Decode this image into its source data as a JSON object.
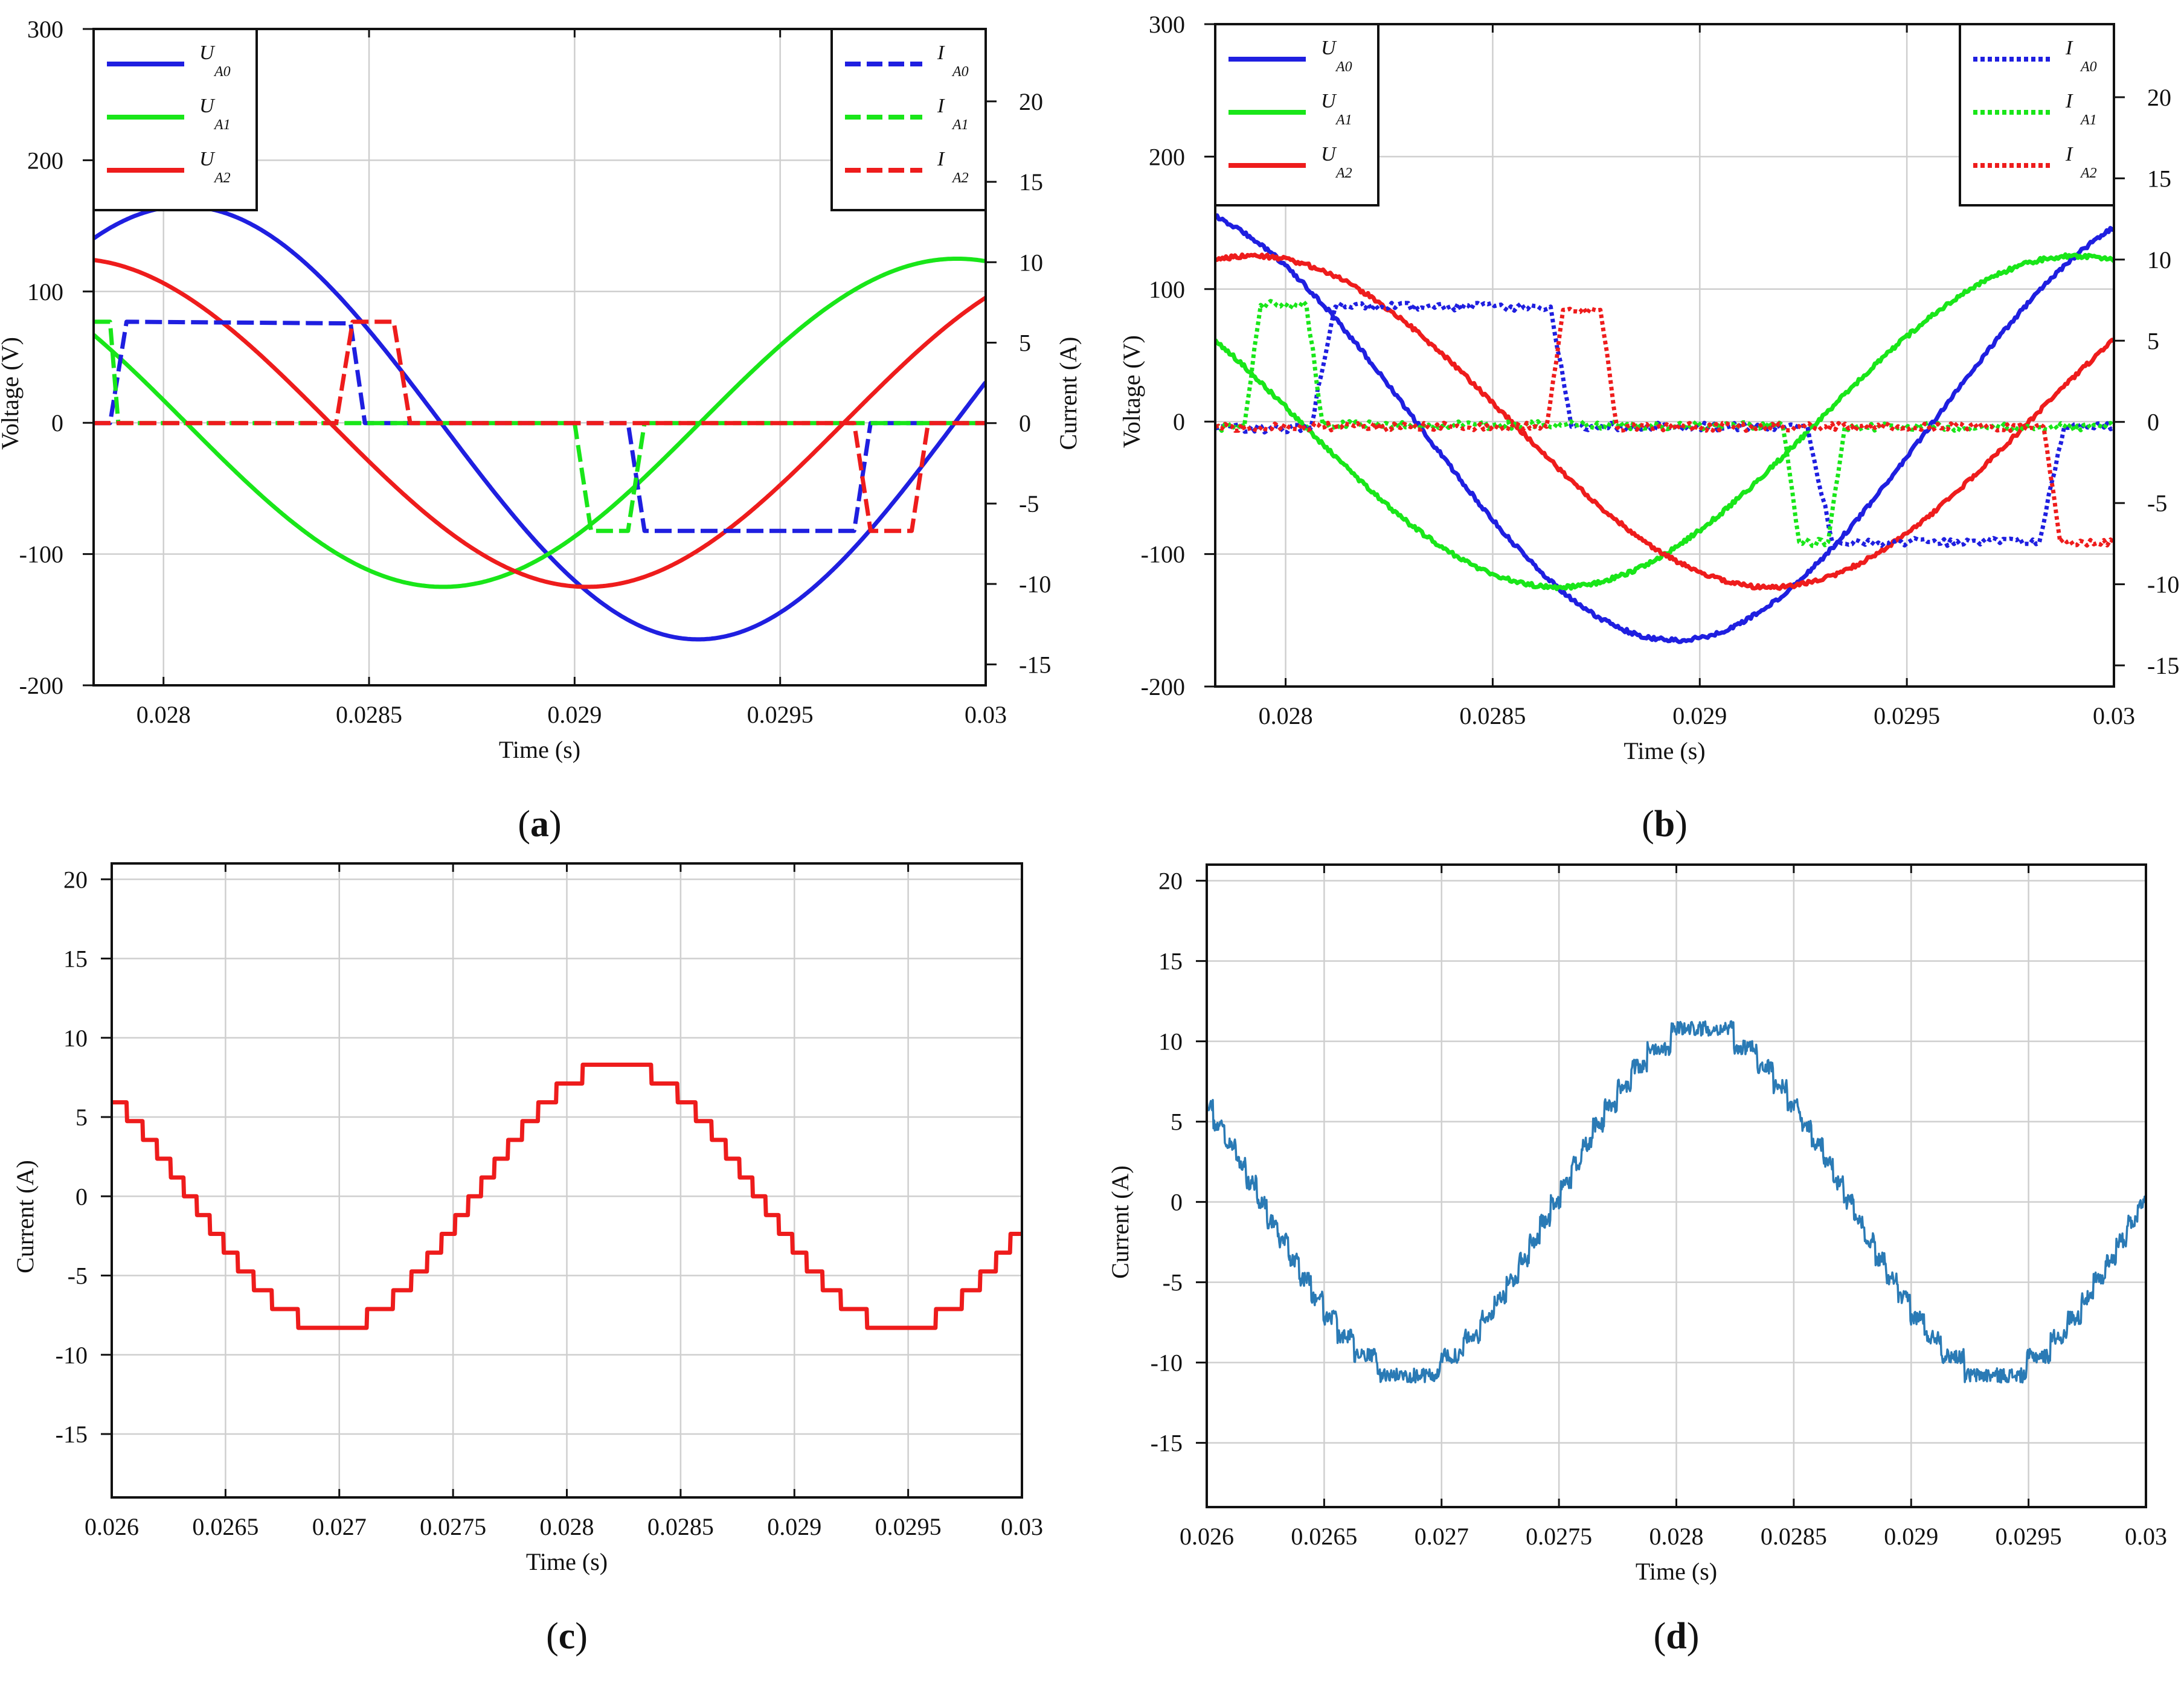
{
  "chart_data": [
    {
      "id": "a",
      "panel_label": "(a)",
      "panel_letter": "a",
      "type": "line",
      "xlabel": "Time (s)",
      "ylabel": "Voltage (V)",
      "y2label": "Current (A)",
      "xlim": [
        0.02783,
        0.03
      ],
      "ylim": [
        -200,
        300
      ],
      "y2lim": [
        -16.3,
        24.5
      ],
      "xticks": [
        0.028,
        0.0285,
        0.029,
        0.0295,
        0.03
      ],
      "xtick_labels": [
        "0.028",
        "0.0285",
        "0.029",
        "0.0295",
        "0.03"
      ],
      "yticks": [
        -200,
        -100,
        0,
        100,
        200,
        300
      ],
      "ytick_labels": [
        "-200",
        "-100",
        "0",
        "100",
        "200",
        "300"
      ],
      "y2ticks": [
        -15,
        -10,
        -5,
        0,
        5,
        10,
        15,
        20
      ],
      "y2tick_labels": [
        "-15",
        "-10",
        "-5",
        "0",
        "5",
        "10",
        "15",
        "20"
      ],
      "legend_left": [
        {
          "main": "U",
          "sub": "A0",
          "color": "#1f1fe0",
          "style": "solid"
        },
        {
          "main": "U",
          "sub": "A1",
          "color": "#19e619",
          "style": "solid"
        },
        {
          "main": "U",
          "sub": "A2",
          "color": "#ee1c1c",
          "style": "solid"
        }
      ],
      "legend_right": [
        {
          "main": "I",
          "sub": "A0",
          "color": "#1f1fe0",
          "style": "dashed"
        },
        {
          "main": "I",
          "sub": "A1",
          "color": "#19e619",
          "style": "dashed"
        },
        {
          "main": "I",
          "sub": "A2",
          "color": "#ee1c1c",
          "style": "dashed"
        }
      ],
      "series": [
        {
          "name": "U_A0",
          "axis": "left",
          "kind": "sine",
          "amp": 165,
          "period": 0.0025,
          "phase": 0.02805,
          "color": "#1f1fe0"
        },
        {
          "name": "U_A1",
          "axis": "left",
          "kind": "sine",
          "amp": 125,
          "period": 0.0025,
          "phase": 0.02743,
          "color": "#19e619"
        },
        {
          "name": "U_A2",
          "axis": "left",
          "kind": "sine",
          "amp": 125,
          "period": 0.0025,
          "phase": 0.02778,
          "color": "#ee1c1c"
        },
        {
          "name": "I_A0",
          "axis": "right",
          "kind": "steps",
          "color": "#1f1fe0",
          "dashed": true,
          "x": [
            0.02783,
            0.02787,
            0.02791,
            0.028455,
            0.02849,
            0.02913,
            0.02917,
            0.02968,
            0.02972,
            0.03
          ],
          "y": [
            0,
            0,
            6.3,
            6.2,
            0,
            0,
            -6.7,
            -6.7,
            0,
            0
          ]
        },
        {
          "name": "I_A1",
          "axis": "right",
          "kind": "steps",
          "color": "#19e619",
          "dashed": true,
          "x": [
            0.02783,
            0.02787,
            0.02789,
            0.029,
            0.02904,
            0.02913,
            0.02917,
            0.03
          ],
          "y": [
            6.3,
            6.3,
            0,
            0,
            -6.7,
            -6.7,
            0,
            0
          ]
        },
        {
          "name": "I_A2",
          "axis": "right",
          "kind": "steps",
          "color": "#ee1c1c",
          "dashed": true,
          "x": [
            0.02783,
            0.02842,
            0.02846,
            0.02856,
            0.0286,
            0.02968,
            0.02972,
            0.02982,
            0.02986,
            0.03
          ],
          "y": [
            0,
            0,
            6.3,
            6.3,
            0,
            0,
            -6.7,
            -6.7,
            0,
            0
          ]
        }
      ]
    },
    {
      "id": "b",
      "panel_label": "(b)",
      "panel_letter": "b",
      "type": "line",
      "xlabel": "Time (s)",
      "ylabel": "Voltage (V)",
      "y2label": "Current (A)",
      "xlim": [
        0.02783,
        0.03
      ],
      "ylim": [
        -200,
        300
      ],
      "y2lim": [
        -16.3,
        24.5
      ],
      "xticks": [
        0.028,
        0.0285,
        0.029,
        0.0295,
        0.03
      ],
      "xtick_labels": [
        "0.028",
        "0.0285",
        "0.029",
        "0.0295",
        "0.03"
      ],
      "yticks": [
        -200,
        -100,
        0,
        100,
        200,
        300
      ],
      "ytick_labels": [
        "-200",
        "-100",
        "0",
        "100",
        "200",
        "300"
      ],
      "y2ticks": [
        -15,
        -10,
        -5,
        0,
        5,
        10,
        15,
        20
      ],
      "y2tick_labels": [
        "-15",
        "-10",
        "-5",
        "0",
        "5",
        "10",
        "15",
        "20"
      ],
      "legend_left": [
        {
          "main": "U",
          "sub": "A0",
          "color": "#1f1fe0",
          "style": "solid"
        },
        {
          "main": "U",
          "sub": "A1",
          "color": "#19e619",
          "style": "solid"
        },
        {
          "main": "U",
          "sub": "A2",
          "color": "#ee1c1c",
          "style": "solid"
        }
      ],
      "legend_right": [
        {
          "main": "I",
          "sub": "A0",
          "color": "#1f1fe0",
          "style": "dotted"
        },
        {
          "main": "I",
          "sub": "A1",
          "color": "#19e619",
          "style": "dotted"
        },
        {
          "main": "I",
          "sub": "A2",
          "color": "#ee1c1c",
          "style": "dotted"
        }
      ],
      "series": [
        {
          "name": "U_A0",
          "axis": "left",
          "kind": "sine",
          "amp": 165,
          "period": 0.0025,
          "phase": 0.02769,
          "color": "#1f1fe0",
          "noise": 1.5
        },
        {
          "name": "U_A1",
          "axis": "left",
          "kind": "sine",
          "amp": 125,
          "period": 0.0025,
          "phase": 0.02741,
          "color": "#19e619",
          "noise": 1.5
        },
        {
          "name": "U_A2",
          "axis": "left",
          "kind": "sine",
          "amp": 125,
          "period": 0.0025,
          "phase": 0.02792,
          "color": "#ee1c1c",
          "noise": 1.5
        },
        {
          "name": "I_A0",
          "axis": "right",
          "kind": "steps",
          "color": "#1f1fe0",
          "dotted": true,
          "noise": 0.25,
          "x": [
            0.02783,
            0.02806,
            0.02812,
            0.02864,
            0.02869,
            0.02926,
            0.02932,
            0.02982,
            0.02988,
            0.03
          ],
          "y": [
            -0.4,
            -0.4,
            7.1,
            7.1,
            -0.3,
            -0.3,
            -7.4,
            -7.4,
            -0.3,
            -0.3
          ]
        },
        {
          "name": "I_A1",
          "axis": "right",
          "kind": "steps",
          "color": "#19e619",
          "dotted": true,
          "noise": 0.25,
          "x": [
            0.02783,
            0.0279,
            0.02794,
            0.02805,
            0.02809,
            0.0292,
            0.02924,
            0.02931,
            0.02935,
            0.03
          ],
          "y": [
            -0.3,
            -0.3,
            7.2,
            7.2,
            -0.2,
            -0.2,
            -7.4,
            -7.4,
            -0.3,
            -0.3
          ]
        },
        {
          "name": "I_A2",
          "axis": "right",
          "kind": "steps",
          "color": "#ee1c1c",
          "dotted": true,
          "noise": 0.25,
          "x": [
            0.02783,
            0.02863,
            0.02867,
            0.02876,
            0.0288,
            0.02983,
            0.02987,
            0.03
          ],
          "y": [
            -0.3,
            -0.3,
            6.9,
            6.9,
            -0.3,
            -0.3,
            -7.4,
            -7.4
          ]
        }
      ]
    },
    {
      "id": "c",
      "panel_label": "(c)",
      "panel_letter": "c",
      "type": "line",
      "xlabel": "Time (s)",
      "ylabel": "Current (A)",
      "xlim": [
        0.026,
        0.03
      ],
      "ylim": [
        -19,
        21
      ],
      "xticks": [
        0.026,
        0.0265,
        0.027,
        0.0275,
        0.028,
        0.0285,
        0.029,
        0.0295,
        0.03
      ],
      "xtick_labels": [
        "0.026",
        "0.0265",
        "0.027",
        "0.0275",
        "0.028",
        "0.0285",
        "0.029",
        "0.0295",
        "0.03"
      ],
      "yticks": [
        -15,
        -10,
        -5,
        0,
        5,
        10,
        15,
        20
      ],
      "ytick_labels": [
        "-15",
        "-10",
        "-5",
        "0",
        "5",
        "10",
        "15",
        "20"
      ],
      "series": [
        {
          "name": "current",
          "kind": "staircase",
          "amp": 8.3,
          "period": 0.0025,
          "peak": 0.02822,
          "levels": 7,
          "color": "#ee1c1c"
        }
      ]
    },
    {
      "id": "d",
      "panel_label": "(d)",
      "panel_letter": "d",
      "type": "line",
      "xlabel": "Time (s)",
      "ylabel": "Current (A)",
      "xlim": [
        0.026,
        0.03
      ],
      "ylim": [
        -19,
        21
      ],
      "xticks": [
        0.026,
        0.0265,
        0.027,
        0.0275,
        0.028,
        0.0285,
        0.029,
        0.0295,
        0.03
      ],
      "xtick_labels": [
        "0.026",
        "0.0265",
        "0.027",
        "0.0275",
        "0.028",
        "0.0285",
        "0.029",
        "0.0295",
        "0.03"
      ],
      "yticks": [
        -15,
        -10,
        -5,
        0,
        5,
        10,
        15,
        20
      ],
      "ytick_labels": [
        "-15",
        "-10",
        "-5",
        "0",
        "5",
        "10",
        "15",
        "20"
      ],
      "series": [
        {
          "name": "current",
          "kind": "staircase",
          "amp": 10.8,
          "period": 0.0025,
          "peak": 0.02811,
          "levels": 9,
          "color": "#2a7ab5",
          "noise": 0.45
        }
      ]
    }
  ]
}
